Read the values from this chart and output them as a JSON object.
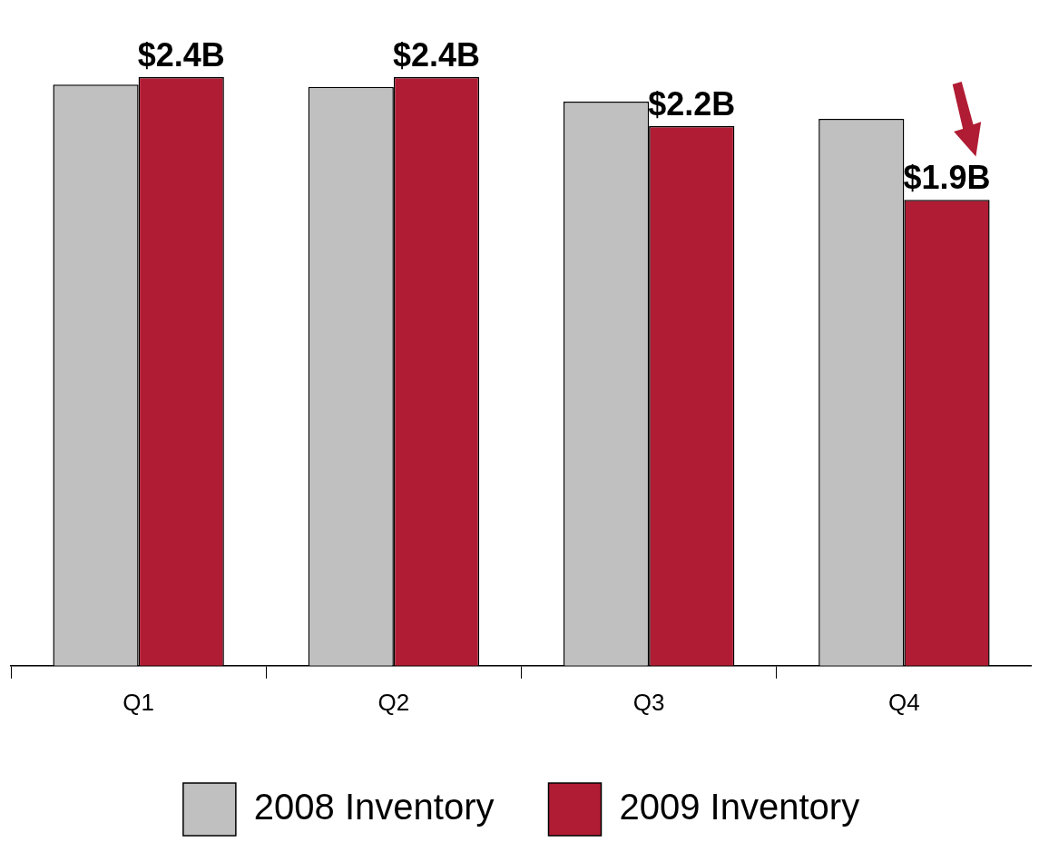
{
  "chart_data": {
    "type": "bar",
    "categories": [
      "Q1",
      "Q2",
      "Q3",
      "Q4"
    ],
    "series": [
      {
        "name": "2008 Inventory",
        "color": "#c0c0c0",
        "values": [
          2.37,
          2.36,
          2.3,
          2.23
        ]
      },
      {
        "name": "2009 Inventory",
        "color": "#b01c33",
        "values": [
          2.4,
          2.4,
          2.2,
          1.9
        ],
        "value_labels": [
          "$2.4B",
          "$2.4B",
          "$2.2B",
          "$1.9B"
        ]
      }
    ],
    "legend": "bottom",
    "grid": false
  }
}
